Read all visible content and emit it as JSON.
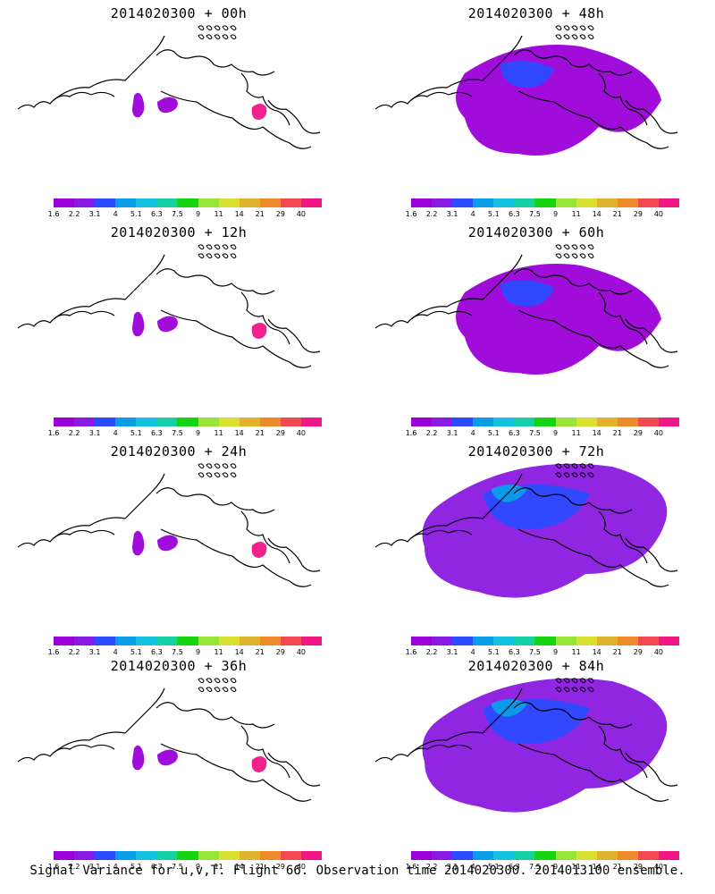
{
  "panels": [
    {
      "title": "2014020300 + 00h",
      "coverage": "sparse"
    },
    {
      "title": "2014020300 + 48h",
      "coverage": "medium"
    },
    {
      "title": "2014020300 + 12h",
      "coverage": "sparse"
    },
    {
      "title": "2014020300 + 60h",
      "coverage": "medium"
    },
    {
      "title": "2014020300 + 24h",
      "coverage": "sparse"
    },
    {
      "title": "2014020300 + 72h",
      "coverage": "large"
    },
    {
      "title": "2014020300 + 36h",
      "coverage": "sparse"
    },
    {
      "title": "2014020300 + 84h",
      "coverage": "large"
    }
  ],
  "colorbar": {
    "ticks": [
      "1.6",
      "2.2",
      "3.1",
      "4",
      "5.1",
      "6.3",
      "7.5",
      "9",
      "11",
      "14",
      "21",
      "29",
      "40"
    ],
    "colors": [
      "#9b00d8",
      "#8a1ae0",
      "#2b4bff",
      "#0a9ee8",
      "#15c2e0",
      "#16cfa8",
      "#14d414",
      "#9ae43a",
      "#d8e032",
      "#e2b22c",
      "#ee8a28",
      "#f04a50",
      "#f01687"
    ]
  },
  "caption": "Signal Variance for u,v,T. Flight 66. Observation time 2014020300. 2014013100 ensemble."
}
